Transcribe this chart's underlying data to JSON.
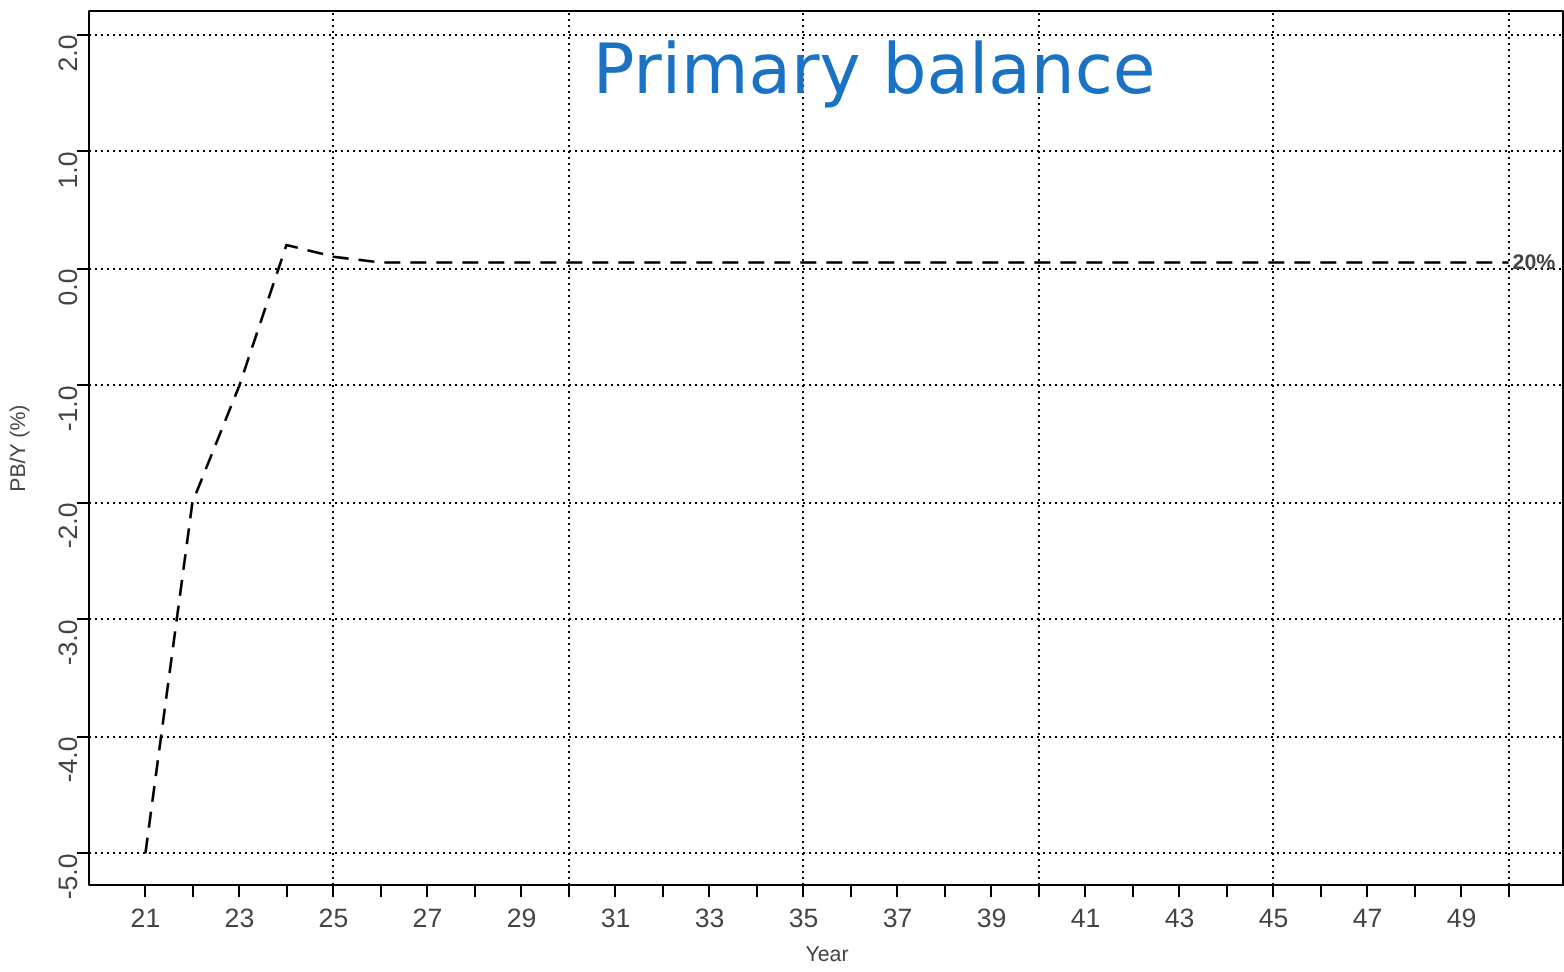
{
  "chart_data": {
    "type": "line",
    "title": "Primary balance",
    "xlabel": "Year",
    "ylabel": "PB/Y (%)",
    "x": [
      21,
      22,
      23,
      24,
      25,
      26,
      27,
      28,
      29,
      30,
      31,
      32,
      33,
      34,
      35,
      36,
      37,
      38,
      39,
      40,
      41,
      42,
      43,
      44,
      45,
      46,
      47,
      48,
      49,
      50
    ],
    "series": [
      {
        "color": "#000000",
        "values": [
          -5.0,
          -2.0,
          -1.0,
          0.2,
          0.1,
          0.05,
          0.05,
          0.05,
          0.05,
          0.05,
          0.05,
          0.05,
          0.05,
          0.05,
          0.05,
          0.05,
          0.05,
          0.05,
          0.05,
          0.05,
          0.05,
          0.05,
          0.05,
          0.05,
          0.05,
          0.05,
          0.05,
          0.05,
          0.05,
          0.05
        ]
      }
    ],
    "annotations": [
      {
        "text": "20%",
        "x": 50,
        "y": 0.05
      }
    ],
    "xlim": [
      19.8,
      51.2
    ],
    "ylim": [
      -5.27,
      2.2
    ],
    "xticks": [
      21,
      {
        "value": 22,
        "label": null
      },
      23,
      {
        "value": 24,
        "label": null
      },
      25,
      {
        "value": 26,
        "label": null
      },
      27,
      {
        "value": 28,
        "label": null
      },
      29,
      {
        "value": 30,
        "label": null
      },
      31,
      {
        "value": 32,
        "label": null
      },
      33,
      {
        "value": 34,
        "label": null
      },
      35,
      {
        "value": 36,
        "label": null
      },
      37,
      {
        "value": 38,
        "label": null
      },
      39,
      {
        "value": 40,
        "label": null
      },
      41,
      {
        "value": 42,
        "label": null
      },
      43,
      {
        "value": 44,
        "label": null
      },
      45,
      {
        "value": 46,
        "label": null
      },
      47,
      {
        "value": 48,
        "label": null
      },
      49,
      {
        "value": 50,
        "label": null
      }
    ],
    "yticks": [
      {
        "value": -5,
        "label": "-5.0"
      },
      {
        "value": -4,
        "label": "-4.0"
      },
      {
        "value": -3,
        "label": "-3.0"
      },
      {
        "value": -2,
        "label": "-2.0"
      },
      {
        "value": -1,
        "label": "-1.0"
      },
      {
        "value": 0,
        "label": "0.0"
      },
      {
        "value": 1,
        "label": "1.0"
      },
      {
        "value": 2,
        "label": "2.0"
      }
    ],
    "grid": true,
    "line_style": "dashed",
    "marker": "none"
  }
}
